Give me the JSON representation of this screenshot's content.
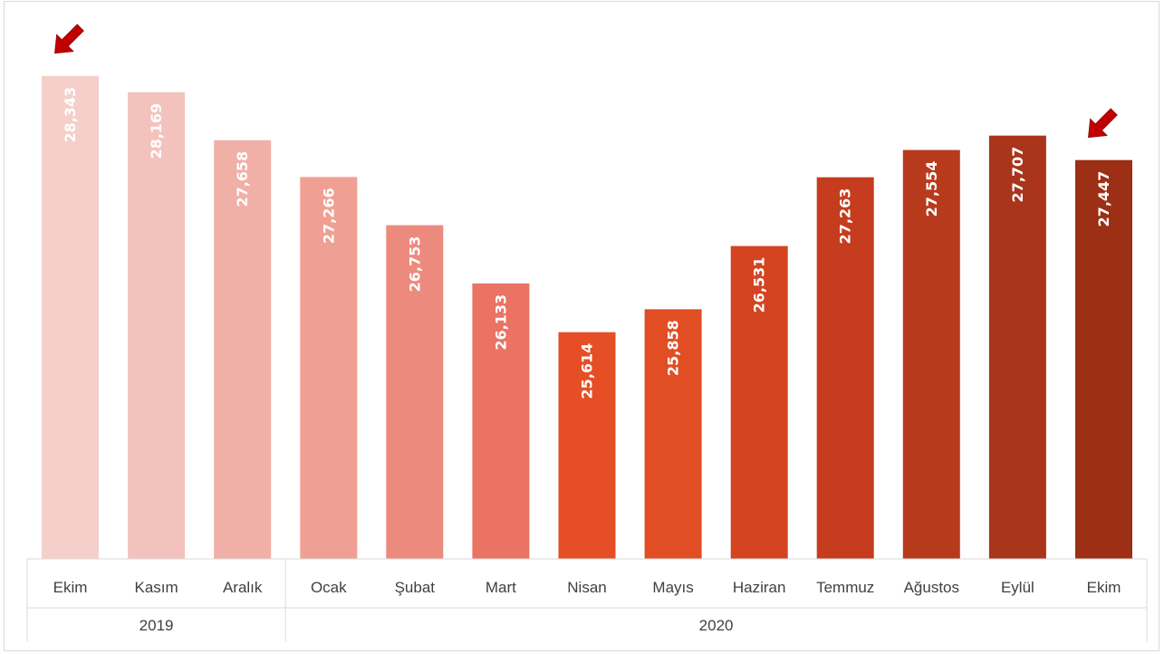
{
  "chart_data": {
    "type": "bar",
    "categories": [
      "Ekim",
      "Kasım",
      "Aralık",
      "Ocak",
      "Şubat",
      "Mart",
      "Nisan",
      "Mayıs",
      "Haziran",
      "Temmuz",
      "Ağustos",
      "Eylül",
      "Ekim"
    ],
    "values": [
      28343,
      28169,
      27658,
      27266,
      26753,
      26133,
      25614,
      25858,
      26531,
      27263,
      27554,
      27707,
      27447
    ],
    "value_labels": [
      "28,343",
      "28,169",
      "27,658",
      "27,266",
      "26,753",
      "26,133",
      "25,614",
      "25,858",
      "26,531",
      "27,263",
      "27,554",
      "27,707",
      "27,447"
    ],
    "groups": [
      {
        "label": "2019",
        "count": 3
      },
      {
        "label": "2020",
        "count": 10
      }
    ],
    "colors": [
      "#F5CFCA",
      "#F3C2BC",
      "#F0B0A7",
      "#EFA093",
      "#EC8A7E",
      "#EA7363",
      "#E64E26",
      "#E14E24",
      "#D44420",
      "#C63C1E",
      "#B83A1D",
      "#A9351A",
      "#9C2F14"
    ],
    "arrow_color": "#C00000",
    "arrows_on": [
      0,
      12
    ],
    "ylim": [
      23200,
      28900
    ],
    "grid": false,
    "legend": "none"
  }
}
